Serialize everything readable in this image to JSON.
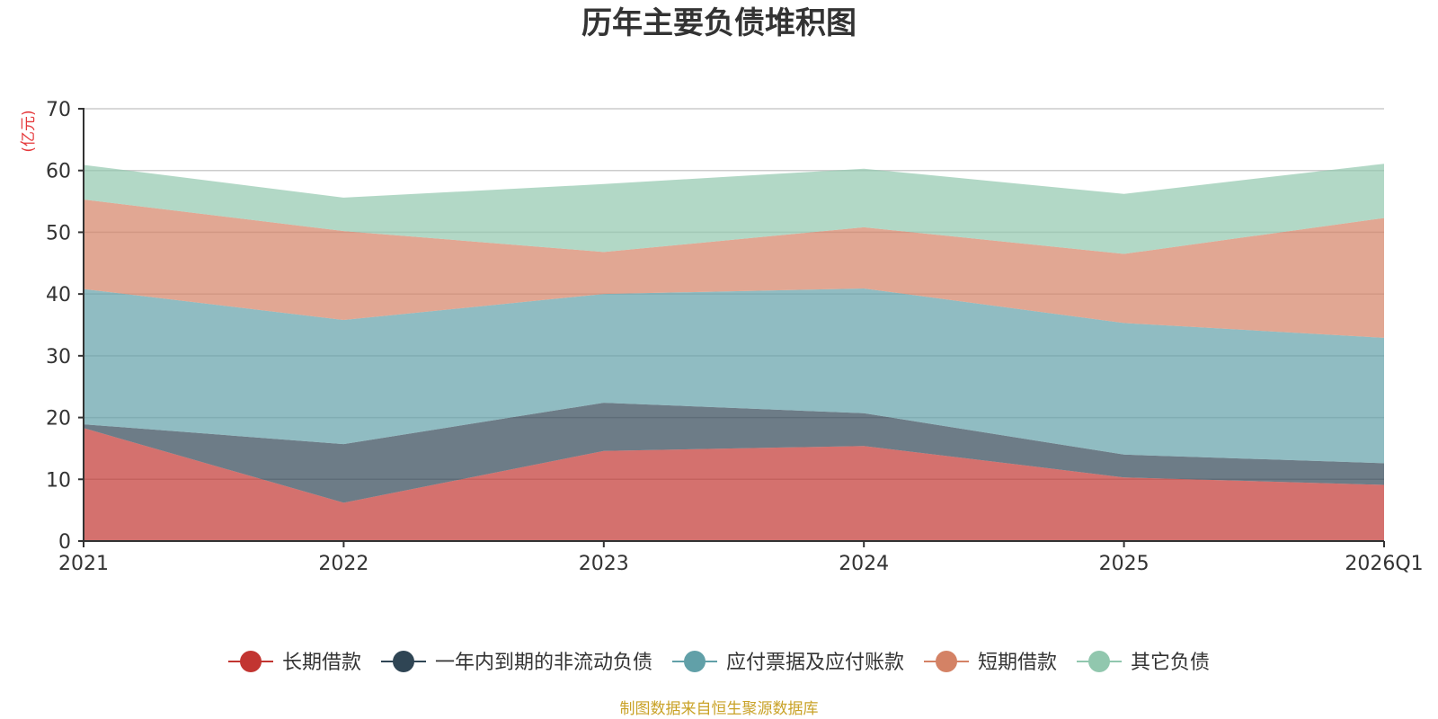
{
  "chart_data": {
    "type": "area",
    "stacked": true,
    "title": "历年主要负债堆积图",
    "ylabel": "(亿元)",
    "xlabel": "",
    "ylim": [
      0,
      70
    ],
    "yticks": [
      0,
      10,
      20,
      30,
      40,
      50,
      60,
      70
    ],
    "categories": [
      "2021",
      "2022",
      "2023",
      "2024",
      "2025",
      "2026Q1"
    ],
    "series": [
      {
        "name": "长期借款",
        "color": "#c23531",
        "values": [
          18.3,
          6.2,
          14.6,
          15.4,
          10.3,
          9.1
        ]
      },
      {
        "name": "一年内到期的非流动负债",
        "color": "#2f4554",
        "values": [
          0.6,
          9.5,
          7.8,
          5.3,
          3.7,
          3.5
        ]
      },
      {
        "name": "应付票据及应付账款",
        "color": "#61a0a8",
        "values": [
          21.9,
          20.1,
          17.6,
          20.2,
          21.3,
          20.3
        ]
      },
      {
        "name": "短期借款",
        "color": "#d48265",
        "values": [
          14.5,
          14.4,
          6.8,
          9.9,
          11.2,
          19.4
        ]
      },
      {
        "name": "其它负债",
        "color": "#91c7ae",
        "values": [
          5.6,
          5.4,
          11.0,
          9.5,
          9.7,
          8.8
        ]
      }
    ],
    "legend_position": "bottom",
    "grid": true
  },
  "source_text": "制图数据来自恒生聚源数据库",
  "colors": {
    "unit_label": "#e5383b",
    "source_text": "#c9a227",
    "axis": "#333333",
    "grid": "#cccccc"
  }
}
